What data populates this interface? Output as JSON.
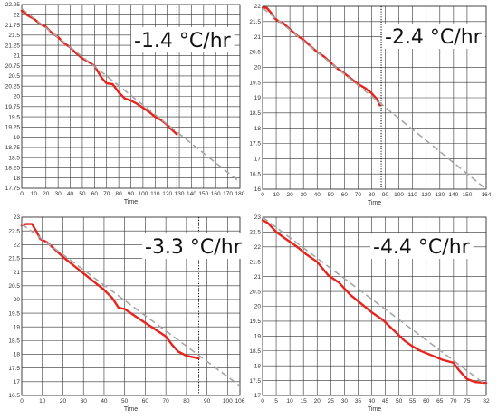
{
  "colors": {
    "measured": "#e8231c",
    "fit": "#a6a6a6",
    "grid": "#333333",
    "cursor": "#000000"
  },
  "chart_data": [
    {
      "type": "line",
      "rate_label": "-1.4 °C/hr",
      "xlabel": "Time",
      "ylabel": "",
      "xlim": [
        0,
        180
      ],
      "ylim": [
        17.75,
        22.25
      ],
      "x_ticks": [
        "0",
        "10",
        "20",
        "30",
        "40",
        "50",
        "60",
        "70",
        "80",
        "90",
        "100",
        "110",
        "120",
        "130",
        "140",
        "150",
        "160",
        "170",
        "180"
      ],
      "y_ticks": [
        "22.25",
        "22",
        "21.75",
        "21.5",
        "21.25",
        "21",
        "20.75",
        "20.5",
        "20.25",
        "20",
        "19.75",
        "19.5",
        "19.25",
        "19",
        "18.75",
        "18.5",
        "18.25",
        "18",
        "17.75"
      ],
      "cursor_x": 128,
      "series": [
        {
          "role": "measured",
          "x": [
            0,
            5,
            10,
            15,
            20,
            25,
            30,
            35,
            40,
            45,
            50,
            55,
            60,
            63,
            66,
            70,
            75,
            80,
            85,
            90,
            95,
            100,
            105,
            110,
            115,
            120,
            124,
            128
          ],
          "y": [
            22.1,
            21.98,
            21.9,
            21.78,
            21.7,
            21.55,
            21.45,
            21.3,
            21.2,
            21.05,
            20.93,
            20.85,
            20.75,
            20.6,
            20.45,
            20.32,
            20.3,
            20.1,
            19.95,
            19.9,
            19.82,
            19.72,
            19.62,
            19.5,
            19.42,
            19.3,
            19.18,
            19.07
          ]
        },
        {
          "role": "fit",
          "x": [
            0,
            180
          ],
          "y": [
            22.15,
            17.9
          ]
        }
      ]
    },
    {
      "type": "line",
      "rate_label": "-2.4 °C/hr",
      "xlabel": "Time",
      "ylabel": "",
      "xlim": [
        0,
        164
      ],
      "ylim": [
        16,
        22
      ],
      "x_ticks": [
        "0",
        "10",
        "20",
        "30",
        "40",
        "50",
        "60",
        "70",
        "80",
        "90",
        "100",
        "110",
        "120",
        "130",
        "140",
        "150",
        "164"
      ],
      "y_ticks": [
        "22",
        "21.5",
        "21",
        "20.5",
        "20",
        "19.5",
        "19",
        "18.5",
        "18",
        "17.5",
        "17",
        "16.5",
        "16"
      ],
      "cursor_x": 87,
      "series": [
        {
          "role": "measured",
          "x": [
            0,
            3,
            6,
            9,
            12,
            15,
            20,
            25,
            30,
            35,
            40,
            45,
            50,
            55,
            60,
            65,
            70,
            75,
            80,
            84,
            86
          ],
          "y": [
            21.95,
            21.95,
            21.8,
            21.6,
            21.5,
            21.45,
            21.25,
            21.05,
            20.9,
            20.7,
            20.5,
            20.35,
            20.15,
            19.95,
            19.8,
            19.62,
            19.45,
            19.32,
            19.15,
            18.95,
            18.75
          ]
        },
        {
          "role": "fit",
          "x": [
            0,
            164
          ],
          "y": [
            21.95,
            16
          ]
        }
      ]
    },
    {
      "type": "line",
      "rate_label": "-3.3 °C/hr",
      "xlabel": "Time",
      "ylabel": "",
      "xlim": [
        0,
        106
      ],
      "ylim": [
        16.5,
        23
      ],
      "x_ticks": [
        "0",
        "10",
        "20",
        "30",
        "40",
        "50",
        "60",
        "70",
        "80",
        "90",
        "100",
        "106"
      ],
      "y_ticks": [
        "23",
        "22.5",
        "22",
        "21.5",
        "21",
        "20.5",
        "20",
        "19.5",
        "19",
        "18.5",
        "18",
        "17.5",
        "17",
        "16.5"
      ],
      "cursor_x": 86,
      "series": [
        {
          "role": "measured",
          "x": [
            0,
            2,
            5,
            7,
            9,
            12,
            15,
            20,
            25,
            30,
            35,
            40,
            44,
            47,
            50,
            55,
            60,
            65,
            70,
            73,
            76,
            80,
            83,
            86
          ],
          "y": [
            22.7,
            22.75,
            22.75,
            22.5,
            22.2,
            22.1,
            21.9,
            21.55,
            21.25,
            20.95,
            20.65,
            20.35,
            20.05,
            19.7,
            19.65,
            19.4,
            19.15,
            18.9,
            18.65,
            18.35,
            18.1,
            17.95,
            17.9,
            17.85
          ]
        },
        {
          "role": "fit",
          "x": [
            0,
            106
          ],
          "y": [
            22.75,
            16.85
          ]
        }
      ]
    },
    {
      "type": "line",
      "rate_label": "-4.4 °C/hr",
      "xlabel": "Time",
      "ylabel": "",
      "xlim": [
        0,
        82
      ],
      "ylim": [
        17,
        23
      ],
      "x_ticks": [
        "0",
        "5",
        "10",
        "15",
        "20",
        "25",
        "30",
        "35",
        "40",
        "45",
        "50",
        "55",
        "60",
        "65",
        "70",
        "75",
        "82"
      ],
      "y_ticks": [
        "23",
        "22.5",
        "22",
        "21.5",
        "21",
        "20.5",
        "20",
        "19.5",
        "19",
        "18.5",
        "18",
        "17.5",
        "17"
      ],
      "cursor_x": null,
      "series": [
        {
          "role": "measured",
          "x": [
            0,
            2,
            5,
            8,
            12,
            16,
            20,
            24,
            28,
            32,
            36,
            40,
            44,
            48,
            52,
            55,
            58,
            62,
            66,
            70,
            72,
            75,
            78,
            82
          ],
          "y": [
            22.9,
            22.8,
            22.5,
            22.3,
            22.05,
            21.75,
            21.5,
            21.05,
            20.8,
            20.4,
            20.1,
            19.8,
            19.55,
            19.2,
            18.85,
            18.65,
            18.5,
            18.35,
            18.2,
            18.1,
            17.85,
            17.55,
            17.45,
            17.42
          ]
        },
        {
          "role": "fit",
          "x": [
            0,
            82
          ],
          "y": [
            23,
            17.35
          ]
        }
      ]
    }
  ]
}
